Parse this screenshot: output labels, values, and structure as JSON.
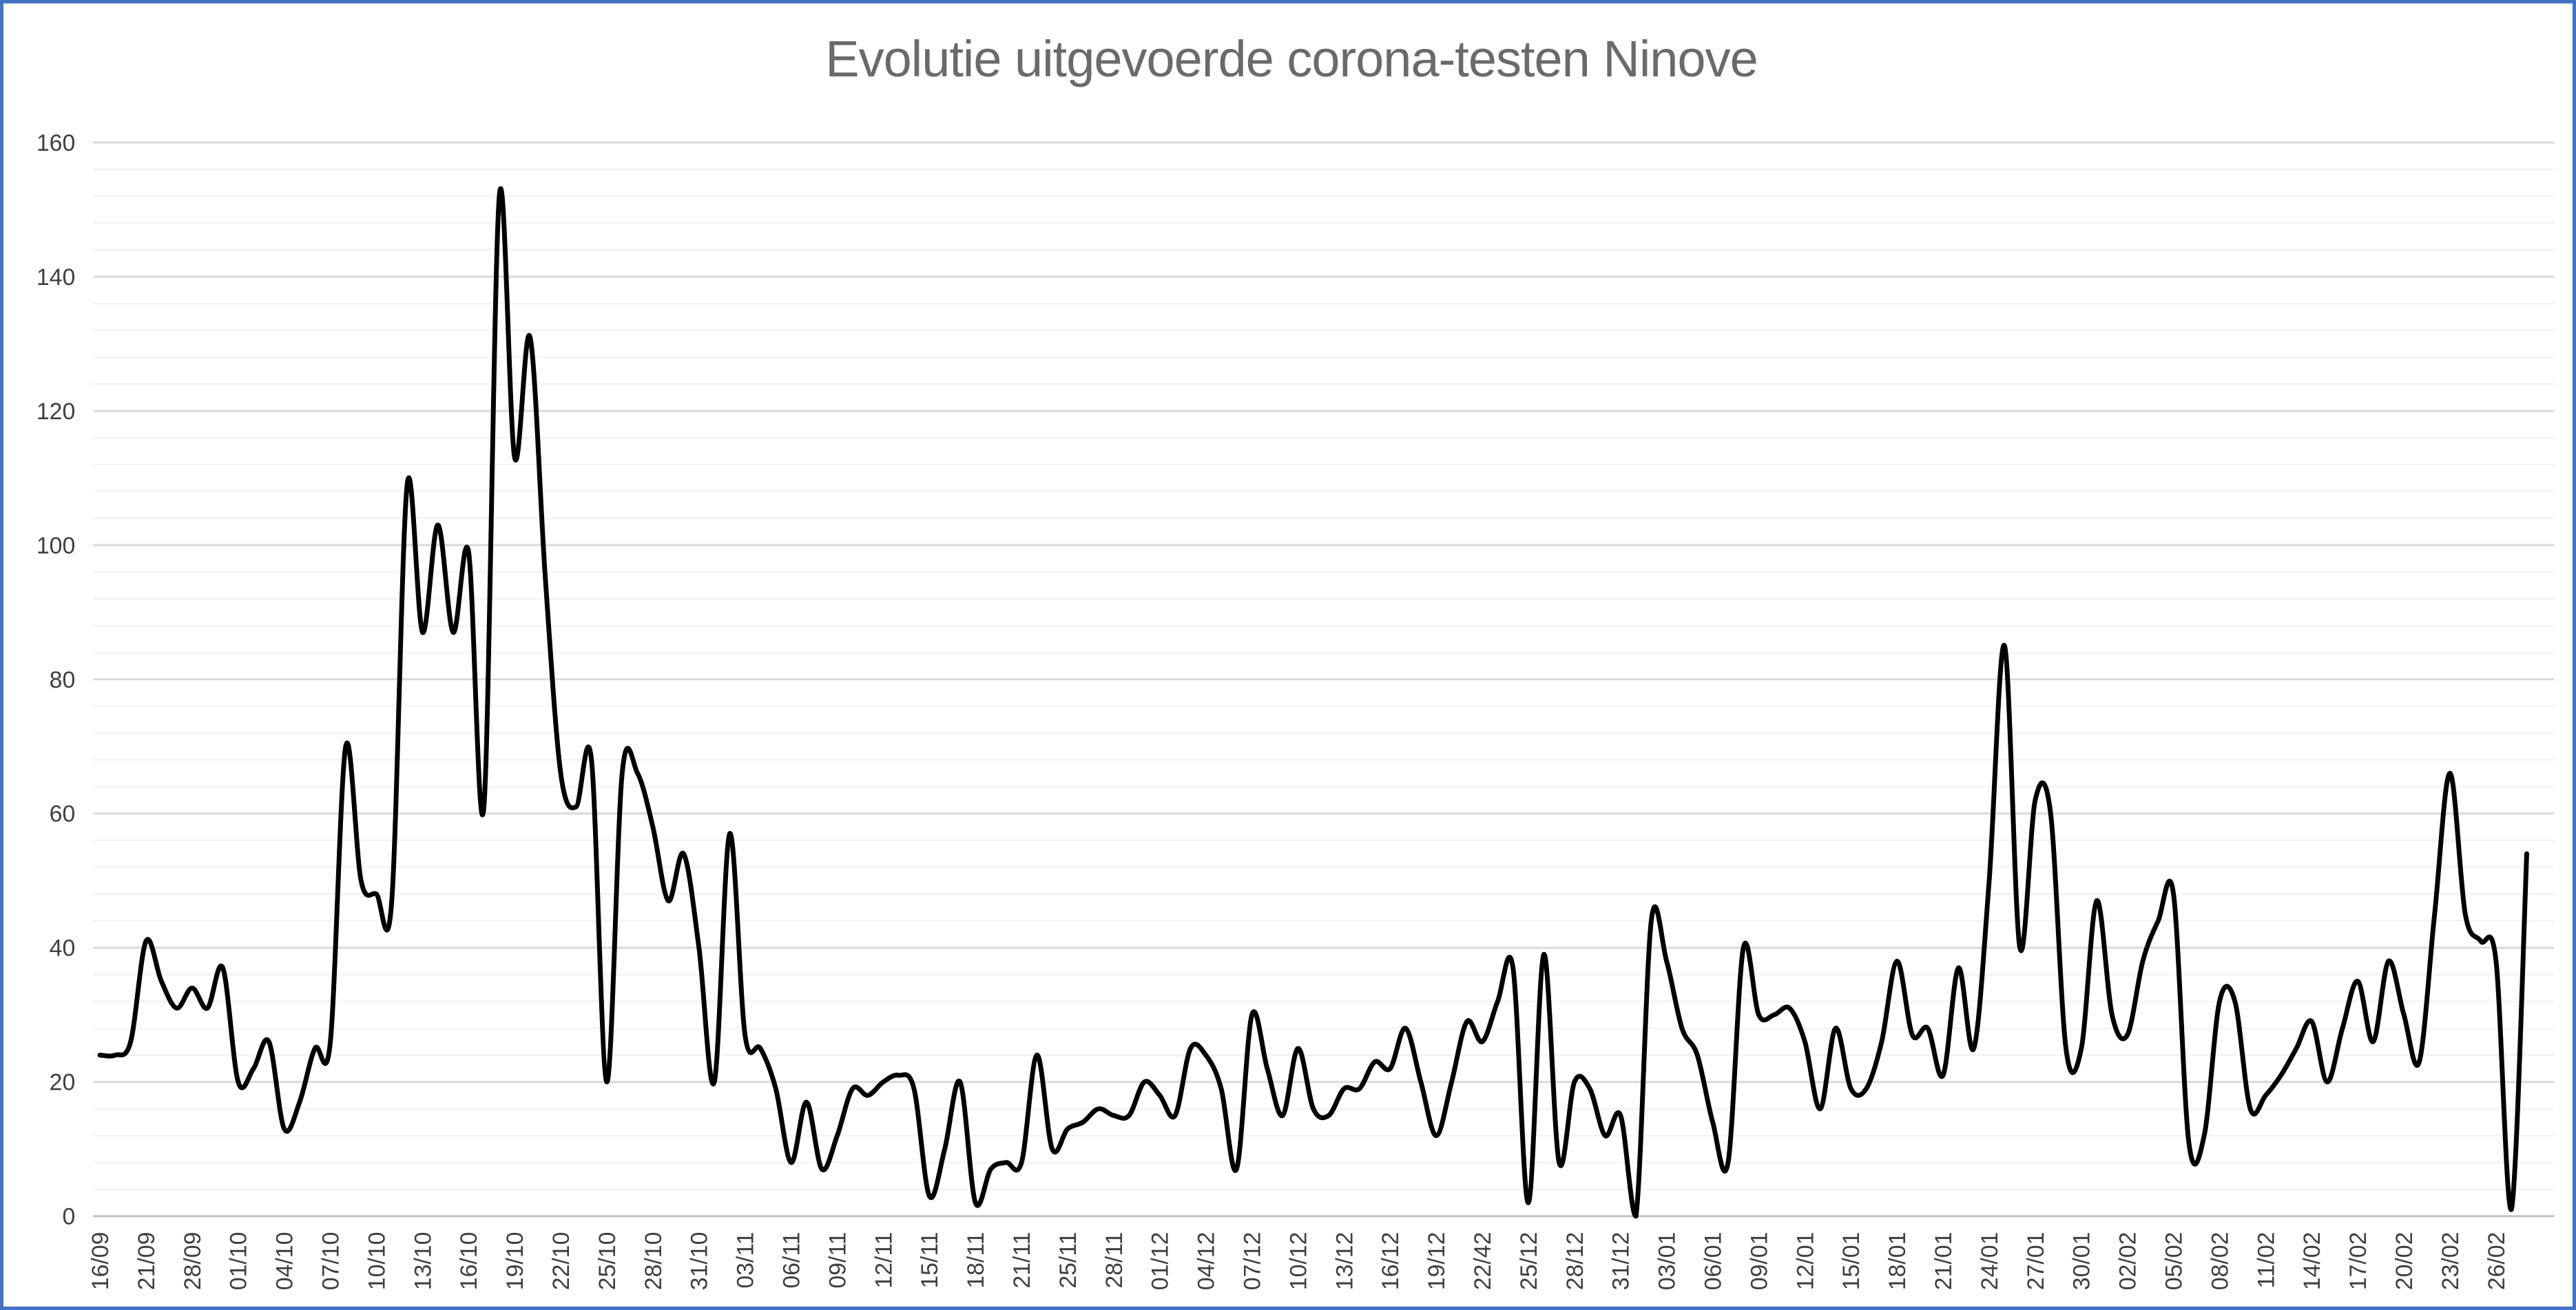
{
  "window": {
    "background": "#FFFFFF",
    "border_color": "#4472C4"
  },
  "chart_data": {
    "type": "line",
    "title": "Evolutie uitgevoerde corona-testen Ninove",
    "xlabel": "",
    "ylabel": "",
    "ylim": [
      0,
      160
    ],
    "y_major_unit": 20,
    "y_minor_unit": 4,
    "y_tick_labels": [
      "0",
      "20",
      "40",
      "60",
      "80",
      "100",
      "120",
      "140",
      "160"
    ],
    "grid": true,
    "legend_position": "none",
    "smooth_line": true,
    "line_color": "#000000",
    "title_color": "#6A6A6A",
    "axis_label_color": "#3F3F3F",
    "major_grid_color": "#D9D9D9",
    "minor_grid_color": "#F0F0F0",
    "axis_line_color": "#BFBFBF",
    "category_label_interval": 3,
    "categories": [
      "16/09",
      "21/09",
      "28/09",
      "01/10",
      "04/10",
      "07/10",
      "10/10",
      "13/10",
      "16/10",
      "19/10",
      "22/10",
      "25/10",
      "28/10",
      "31/10",
      "03/11",
      "06/11",
      "09/11",
      "12/11",
      "15/11",
      "18/11",
      "21/11",
      "25/11",
      "28/11",
      "01/12",
      "04/12",
      "07/12",
      "10/12",
      "13/12",
      "16/12",
      "19/12",
      "22/42",
      "25/12",
      "28/12",
      "31/12",
      "03/01",
      "06/01",
      "09/01",
      "12/01",
      "15/01",
      "18/01",
      "21/01",
      "24/01",
      "27/01",
      "30/01",
      "02/02",
      "05/02",
      "08/02",
      "11/02",
      "14/02",
      "17/02",
      "20/02",
      "23/02",
      "26/02"
    ],
    "values": [
      24,
      24,
      26,
      41,
      35,
      31,
      34,
      31,
      37,
      20,
      22,
      26,
      13,
      17,
      25,
      26,
      70,
      50,
      48,
      47,
      109,
      87,
      103,
      87,
      99,
      61,
      152,
      113,
      131,
      95,
      66,
      61,
      68,
      20,
      66,
      66,
      58,
      47,
      54,
      40,
      20,
      57,
      27,
      25,
      19,
      8,
      17,
      7,
      12,
      19,
      18,
      20,
      21,
      19,
      3,
      10,
      20,
      2,
      7,
      8,
      8,
      24,
      10,
      13,
      14,
      16,
      15,
      15,
      20,
      18,
      15,
      25,
      24,
      19,
      7,
      30,
      22,
      15,
      25,
      16,
      15,
      19,
      19,
      23,
      22,
      28,
      20,
      12,
      20,
      29,
      26,
      32,
      37,
      2,
      39,
      8,
      20,
      19,
      12,
      15,
      0,
      44,
      38,
      28,
      24,
      14,
      8,
      40,
      30,
      30,
      31,
      26,
      16,
      28,
      19,
      19,
      26,
      38,
      27,
      28,
      21,
      37,
      25,
      50,
      85,
      40,
      62,
      60,
      25,
      25,
      47,
      30,
      27,
      38,
      44,
      48,
      11,
      12,
      32,
      32,
      16,
      18,
      21,
      25,
      29,
      20,
      28,
      35,
      26,
      38,
      30,
      23,
      45,
      66,
      45,
      41,
      38,
      1,
      54
    ]
  }
}
